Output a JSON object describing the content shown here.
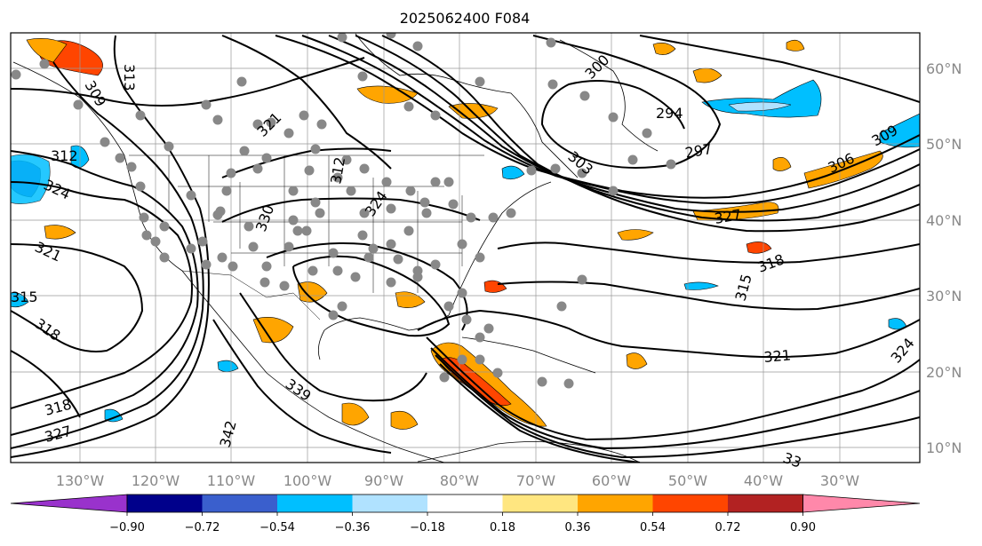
{
  "title": "2025062400 F084",
  "lon_labels": [
    "130°W",
    "120°W",
    "110°W",
    "100°W",
    "90°W",
    "80°W",
    "70°W",
    "60°W",
    "50°W",
    "40°W",
    "30°W"
  ],
  "lat_labels": [
    "60°N",
    "50°N",
    "40°N",
    "30°N",
    "20°N",
    "10°N"
  ],
  "contour_labels": [
    "309",
    "313",
    "312",
    "324",
    "321",
    "315",
    "318",
    "318",
    "327",
    "342",
    "321",
    "330",
    "312",
    "324",
    "339",
    "300",
    "294",
    "297",
    "303",
    "309",
    "306",
    "327",
    "318",
    "315",
    "321",
    "324",
    "33"
  ],
  "colorbar": {
    "ticks": [
      "−0.90",
      "−0.72",
      "−0.54",
      "−0.36",
      "−0.18",
      "0.18",
      "0.36",
      "0.54",
      "0.72",
      "0.90"
    ],
    "colors": [
      "#9932cc",
      "#00008b",
      "#3a5fcd",
      "#00bfff",
      "#b0e2ff",
      "#ffffff",
      "#ffe680",
      "#ffa500",
      "#ff4500",
      "#b22222",
      "#ff88aa"
    ]
  },
  "legend_colors": {
    "positive_low": "#ffe680",
    "positive_mid": "#ffa500",
    "positive_high": "#ff4500",
    "negative_low": "#b0e2ff",
    "negative_mid": "#00bfff",
    "negative_high": "#3a5fcd",
    "station_dot": "#888888"
  }
}
